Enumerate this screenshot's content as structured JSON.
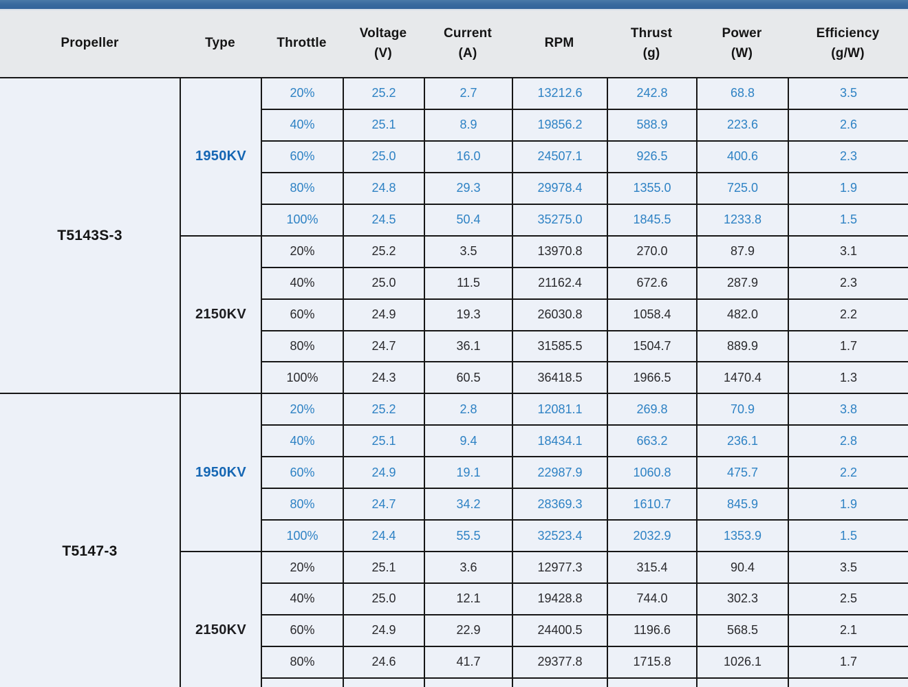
{
  "colors": {
    "accent_bar": "#3a6b9f",
    "header_background": "#e7e9eb",
    "cell_background": "#edf1f8",
    "grid_line": "#161616",
    "blue_text": "#2e82c4",
    "blue_type_label": "#1566b3",
    "dark_text": "#1d1d20"
  },
  "header": {
    "columns": [
      {
        "label": "Propeller",
        "unit": ""
      },
      {
        "label": "Type",
        "unit": ""
      },
      {
        "label": "Throttle",
        "unit": ""
      },
      {
        "label": "Voltage",
        "unit": "(V)"
      },
      {
        "label": "Current",
        "unit": "(A)"
      },
      {
        "label": "RPM",
        "unit": ""
      },
      {
        "label": "Thrust",
        "unit": "(g)"
      },
      {
        "label": "Power",
        "unit": "(W)"
      },
      {
        "label": "Efficiency",
        "unit": "(g/W)"
      }
    ]
  },
  "table": {
    "groups": [
      {
        "propeller": "T5143S-3",
        "types": [
          {
            "type": "1950KV",
            "scheme": "blue",
            "rows": [
              [
                "20%",
                "25.2",
                "2.7",
                "13212.6",
                "242.8",
                "68.8",
                "3.5"
              ],
              [
                "40%",
                "25.1",
                "8.9",
                "19856.2",
                "588.9",
                "223.6",
                "2.6"
              ],
              [
                "60%",
                "25.0",
                "16.0",
                "24507.1",
                "926.5",
                "400.6",
                "2.3"
              ],
              [
                "80%",
                "24.8",
                "29.3",
                "29978.4",
                "1355.0",
                "725.0",
                "1.9"
              ],
              [
                "100%",
                "24.5",
                "50.4",
                "35275.0",
                "1845.5",
                "1233.8",
                "1.5"
              ]
            ]
          },
          {
            "type": "2150KV",
            "scheme": "dark",
            "rows": [
              [
                "20%",
                "25.2",
                "3.5",
                "13970.8",
                "270.0",
                "87.9",
                "3.1"
              ],
              [
                "40%",
                "25.0",
                "11.5",
                "21162.4",
                "672.6",
                "287.9",
                "2.3"
              ],
              [
                "60%",
                "24.9",
                "19.3",
                "26030.8",
                "1058.4",
                "482.0",
                "2.2"
              ],
              [
                "80%",
                "24.7",
                "36.1",
                "31585.5",
                "1504.7",
                "889.9",
                "1.7"
              ],
              [
                "100%",
                "24.3",
                "60.5",
                "36418.5",
                "1966.5",
                "1470.4",
                "1.3"
              ]
            ]
          }
        ]
      },
      {
        "propeller": "T5147-3",
        "types": [
          {
            "type": "1950KV",
            "scheme": "blue",
            "rows": [
              [
                "20%",
                "25.2",
                "2.8",
                "12081.1",
                "269.8",
                "70.9",
                "3.8"
              ],
              [
                "40%",
                "25.1",
                "9.4",
                "18434.1",
                "663.2",
                "236.1",
                "2.8"
              ],
              [
                "60%",
                "24.9",
                "19.1",
                "22987.9",
                "1060.8",
                "475.7",
                "2.2"
              ],
              [
                "80%",
                "24.7",
                "34.2",
                "28369.3",
                "1610.7",
                "845.9",
                "1.9"
              ],
              [
                "100%",
                "24.4",
                "55.5",
                "32523.4",
                "2032.9",
                "1353.9",
                "1.5"
              ]
            ]
          },
          {
            "type": "2150KV",
            "scheme": "dark",
            "rows": [
              [
                "20%",
                "25.1",
                "3.6",
                "12977.3",
                "315.4",
                "90.4",
                "3.5"
              ],
              [
                "40%",
                "25.0",
                "12.1",
                "19428.8",
                "744.0",
                "302.3",
                "2.5"
              ],
              [
                "60%",
                "24.9",
                "22.9",
                "24400.5",
                "1196.6",
                "568.5",
                "2.1"
              ],
              [
                "80%",
                "24.6",
                "41.7",
                "29377.8",
                "1715.8",
                "1026.1",
                "1.7"
              ],
              [
                "",
                "",
                "",
                "",
                "",
                "",
                ""
              ]
            ]
          }
        ]
      }
    ]
  }
}
